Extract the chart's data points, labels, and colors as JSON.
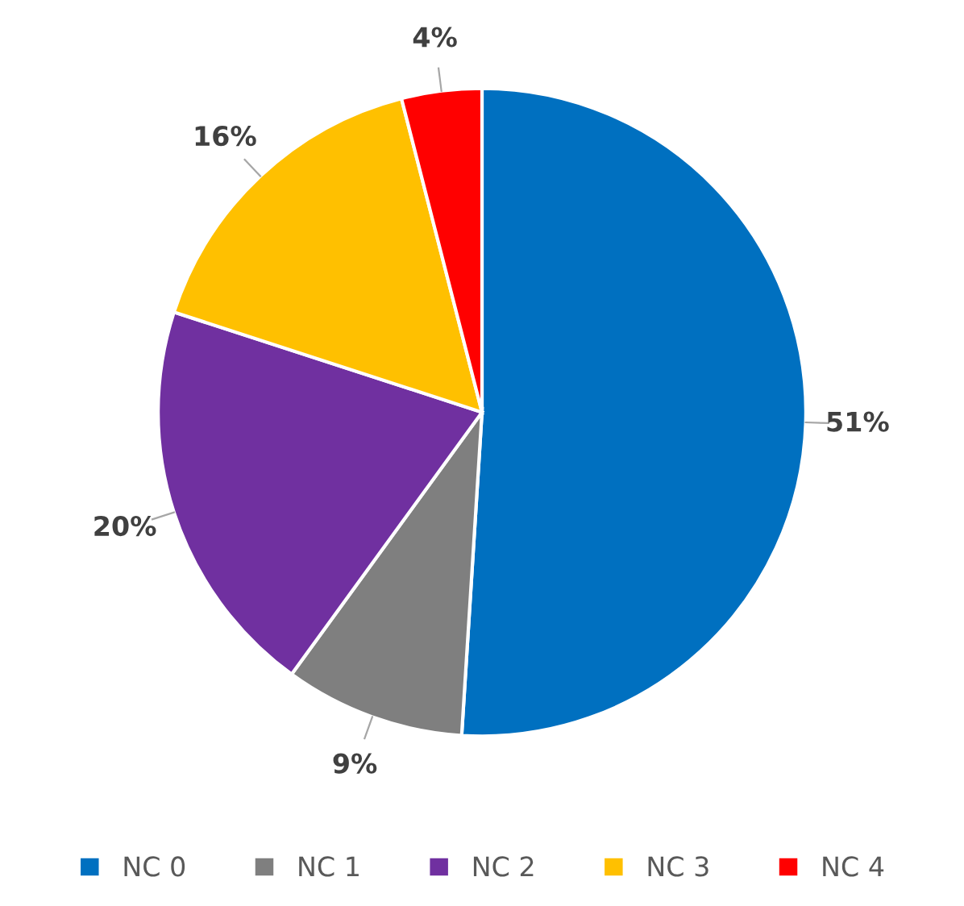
{
  "chart_data": {
    "type": "pie",
    "categories": [
      "NC 0",
      "NC 1",
      "NC 2",
      "NC 3",
      "NC 4"
    ],
    "values": [
      51,
      9,
      20,
      16,
      4
    ],
    "colors": [
      "#0070c0",
      "#7f7f7f",
      "#7030a0",
      "#ffc000",
      "#ff0000"
    ],
    "value_labels": [
      "51%",
      "9%",
      "20%",
      "16%",
      "4%"
    ],
    "legend": "bottom"
  }
}
